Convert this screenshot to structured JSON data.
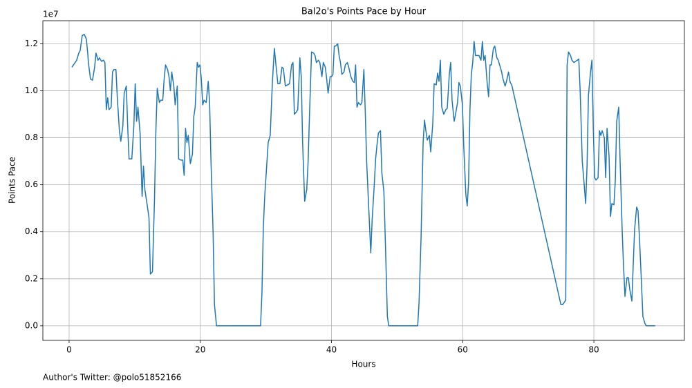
{
  "chart_data": {
    "type": "line",
    "title": "Bal2o's Points Pace by Hour",
    "x_label": "Hours",
    "y_label": "Points Pace",
    "y_offset_label": "1e7",
    "footnote": "Author's Twitter: @polo51852166",
    "grid": true,
    "xlim": [
      -4,
      93.8
    ],
    "ylim": [
      -0.062,
      1.298
    ],
    "xticks": [
      0,
      20,
      40,
      60,
      80
    ],
    "yticks": [
      {
        "value": 0,
        "label": "0.0"
      },
      0.2,
      0.4,
      0.6,
      0.8,
      {
        "value": 1,
        "label": "1.0"
      },
      1.2
    ],
    "x": [
      0.42,
      1.16,
      1.47,
      1.68,
      2.0,
      2.31,
      2.63,
      2.84,
      2.94,
      3.26,
      3.57,
      3.89,
      4.1,
      4.41,
      4.62,
      4.94,
      5.25,
      5.46,
      5.67,
      5.88,
      6.09,
      6.41,
      6.62,
      6.83,
      7.14,
      7.35,
      7.67,
      7.88,
      8.19,
      8.4,
      8.72,
      8.93,
      9.14,
      9.56,
      9.87,
      10.08,
      10.29,
      10.5,
      10.82,
      11.13,
      11.34,
      11.55,
      11.87,
      12.18,
      12.39,
      12.71,
      13.02,
      13.23,
      13.44,
      13.76,
      13.97,
      14.28,
      14.49,
      14.7,
      15.02,
      15.23,
      15.44,
      15.65,
      15.96,
      16.17,
      16.49,
      16.7,
      17.01,
      17.33,
      17.54,
      17.75,
      17.96,
      18.17,
      18.48,
      18.8,
      19.01,
      19.22,
      19.53,
      19.74,
      19.95,
      20.16,
      20.37,
      20.58,
      20.9,
      21.21,
      21.42,
      21.63,
      21.95,
      22.16,
      22.47,
      29.19,
      29.4,
      29.61,
      29.82,
      30.35,
      30.66,
      30.98,
      31.29,
      31.5,
      31.82,
      32.13,
      32.45,
      32.66,
      32.97,
      33.29,
      33.6,
      33.92,
      34.13,
      34.34,
      34.65,
      34.86,
      35.18,
      35.39,
      35.6,
      35.91,
      36.23,
      36.44,
      36.65,
      36.96,
      37.28,
      37.49,
      37.7,
      38.01,
      38.22,
      38.54,
      38.75,
      39.06,
      39.27,
      39.48,
      39.8,
      40.01,
      40.22,
      40.43,
      40.64,
      40.95,
      41.16,
      41.37,
      41.58,
      41.9,
      42.11,
      42.42,
      42.63,
      42.95,
      43.26,
      43.47,
      43.68,
      43.89,
      44.1,
      44.42,
      44.63,
      44.94,
      45.15,
      45.36,
      45.68,
      45.99,
      46.2,
      46.52,
      46.73,
      46.94,
      47.15,
      47.47,
      47.68,
      47.99,
      48.2,
      48.52,
      48.73,
      53.14,
      53.35,
      53.66,
      53.97,
      54.18,
      54.39,
      54.6,
      54.92,
      55.13,
      55.44,
      55.65,
      55.97,
      56.18,
      56.39,
      56.6,
      56.81,
      57.12,
      57.44,
      57.65,
      57.96,
      58.17,
      58.38,
      58.7,
      58.91,
      59.22,
      59.43,
      59.64,
      59.96,
      60.17,
      60.48,
      60.69,
      60.9,
      61.11,
      61.32,
      61.53,
      61.74,
      61.95,
      62.16,
      62.48,
      62.79,
      63.0,
      63.21,
      63.42,
      63.74,
      63.95,
      64.16,
      64.37,
      64.68,
      64.89,
      65.21,
      65.42,
      65.63,
      65.94,
      66.15,
      66.47,
      66.68,
      66.99,
      67.2,
      67.52,
      74.97,
      75.18,
      75.39,
      75.71,
      75.92,
      76.13,
      76.44,
      76.65,
      76.97,
      77.18,
      77.49,
      77.7,
      77.91,
      78.23,
      78.44,
      78.75,
      78.96,
      79.17,
      79.49,
      79.7,
      79.91,
      80.12,
      80.33,
      80.64,
      80.85,
      81.06,
      81.27,
      81.59,
      81.8,
      82.01,
      82.32,
      82.53,
      82.74,
      83.06,
      83.27,
      83.48,
      83.79,
      84.0,
      84.32,
      84.53,
      84.74,
      85.05,
      85.26,
      85.47,
      85.79,
      86.0,
      86.21,
      86.52,
      86.73,
      86.94,
      87.26,
      87.47,
      87.78,
      87.99,
      89.35
    ],
    "series": [
      {
        "color": "#1f77b4",
        "values": [
          1.1,
          1.13,
          1.16,
          1.17,
          1.235,
          1.24,
          1.22,
          1.16,
          1.12,
          1.05,
          1.045,
          1.1,
          1.16,
          1.13,
          1.14,
          1.125,
          1.13,
          1.12,
          0.92,
          0.97,
          0.92,
          0.93,
          1.08,
          1.09,
          1.09,
          0.97,
          0.83,
          0.785,
          0.85,
          0.99,
          1.02,
          0.85,
          0.71,
          0.71,
          0.85,
          1.03,
          0.87,
          0.93,
          0.82,
          0.55,
          0.68,
          0.58,
          0.52,
          0.46,
          0.22,
          0.23,
          0.54,
          0.83,
          1.01,
          0.95,
          0.96,
          0.96,
          1.05,
          1.11,
          1.09,
          1.06,
          1.0,
          1.08,
          1.02,
          0.94,
          1.02,
          0.71,
          0.705,
          0.705,
          0.64,
          0.84,
          0.78,
          0.81,
          0.69,
          0.73,
          0.89,
          0.93,
          1.12,
          1.1,
          1.11,
          1.05,
          0.94,
          0.96,
          0.95,
          1.04,
          0.95,
          0.7,
          0.4,
          0.09,
          0.0,
          0.0,
          0.14,
          0.42,
          0.55,
          0.78,
          0.81,
          1.03,
          1.18,
          1.12,
          1.03,
          1.03,
          1.1,
          1.095,
          1.02,
          1.025,
          1.03,
          1.11,
          1.12,
          0.9,
          0.91,
          0.92,
          1.14,
          1.06,
          0.78,
          0.53,
          0.58,
          0.7,
          0.9,
          1.165,
          1.16,
          1.15,
          1.12,
          1.13,
          1.12,
          1.06,
          1.12,
          1.1,
          1.05,
          0.99,
          1.06,
          1.06,
          1.07,
          1.19,
          1.19,
          1.2,
          1.15,
          1.12,
          1.07,
          1.08,
          1.11,
          1.12,
          1.1,
          1.06,
          1.04,
          1.035,
          1.11,
          0.93,
          0.95,
          0.94,
          0.95,
          1.09,
          0.91,
          0.7,
          0.5,
          0.31,
          0.45,
          0.6,
          0.71,
          0.77,
          0.82,
          0.83,
          0.65,
          0.57,
          0.37,
          0.04,
          0.0,
          0.0,
          0.1,
          0.38,
          0.78,
          0.875,
          0.83,
          0.79,
          0.81,
          0.74,
          0.86,
          1.03,
          1.025,
          1.075,
          1.04,
          1.13,
          0.93,
          0.9,
          0.92,
          0.925,
          1.07,
          1.12,
          0.96,
          0.87,
          0.9,
          0.95,
          1.035,
          1.02,
          0.94,
          0.76,
          0.56,
          0.51,
          0.61,
          0.92,
          1.07,
          1.12,
          1.21,
          1.15,
          1.15,
          1.15,
          1.13,
          1.21,
          1.13,
          1.15,
          1.03,
          0.975,
          1.11,
          1.11,
          1.18,
          1.19,
          1.14,
          1.13,
          1.11,
          1.08,
          1.05,
          1.02,
          1.04,
          1.08,
          1.04,
          1.02,
          0.09,
          0.09,
          0.095,
          0.11,
          1.11,
          1.165,
          1.15,
          1.13,
          1.12,
          1.125,
          1.13,
          1.135,
          1.0,
          0.7,
          0.63,
          0.52,
          0.68,
          0.98,
          1.08,
          1.13,
          0.84,
          0.63,
          0.62,
          0.63,
          0.83,
          0.81,
          0.83,
          0.8,
          0.63,
          0.84,
          0.72,
          0.465,
          0.52,
          0.515,
          0.62,
          0.87,
          0.93,
          0.7,
          0.4,
          0.25,
          0.125,
          0.205,
          0.205,
          0.155,
          0.105,
          0.26,
          0.41,
          0.505,
          0.49,
          0.38,
          0.18,
          0.04,
          0.01,
          0.0,
          0.0
        ]
      }
    ]
  }
}
